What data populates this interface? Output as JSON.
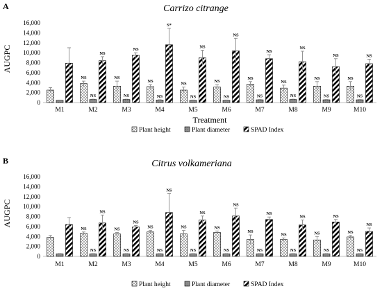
{
  "chart_data": [
    {
      "type": "bar",
      "panel": "A",
      "title": "Carrizo citrange",
      "xlabel": "Treatment",
      "ylabel": "AUGPC",
      "ylim": [
        0,
        16000
      ],
      "yticks": [
        "0",
        "2,000",
        "4,000",
        "6,000",
        "8,000",
        "10,000",
        "12,000",
        "14,000",
        "16,000"
      ],
      "categories": [
        "M1",
        "M2",
        "M3",
        "M4",
        "M5",
        "M6",
        "M7",
        "M8",
        "M9",
        "M10"
      ],
      "legend_position": "bottom",
      "series": [
        {
          "name": "Plant height",
          "pattern": "dots",
          "values": [
            2500,
            3800,
            3300,
            3200,
            2500,
            3100,
            3700,
            2900,
            3300,
            3300
          ],
          "errors": [
            500,
            500,
            1000,
            400,
            600,
            500,
            500,
            600,
            900,
            900
          ],
          "labels": [
            "",
            "NS",
            "NS",
            "NS",
            "NS",
            "NS",
            "NS",
            "NS",
            "NS",
            "NS"
          ]
        },
        {
          "name": "Plant diameter",
          "pattern": "grey",
          "values": [
            450,
            600,
            600,
            500,
            450,
            450,
            550,
            600,
            550,
            550
          ],
          "errors": [
            50,
            80,
            80,
            70,
            60,
            60,
            70,
            80,
            70,
            70
          ],
          "labels": [
            "",
            "NS",
            "NS",
            "NS",
            "NS",
            "NS",
            "NS",
            "NS",
            "NS",
            "NS"
          ]
        },
        {
          "name": "SPAD Index",
          "pattern": "stripes",
          "values": [
            7900,
            8400,
            9500,
            11600,
            9000,
            10400,
            8800,
            8200,
            7200,
            7800
          ],
          "errors": [
            3100,
            800,
            500,
            3300,
            1500,
            2500,
            800,
            2100,
            1600,
            900
          ],
          "labels": [
            "",
            "NS",
            "NS",
            "S*",
            "NS",
            "NS",
            "NS",
            "NS",
            "NS",
            "NS"
          ]
        }
      ]
    },
    {
      "type": "bar",
      "panel": "B",
      "title": "Citrus volkameriana",
      "xlabel": "Treatment",
      "ylabel": "AUGPC",
      "ylim": [
        0,
        16000
      ],
      "yticks": [
        "0",
        "2,000",
        "4,000",
        "6,000",
        "8,000",
        "10,000",
        "12,000",
        "14,000",
        "16,000"
      ],
      "categories": [
        "M1",
        "M2",
        "M3",
        "M4",
        "M5",
        "M6",
        "M7",
        "M8",
        "M9",
        "M10"
      ],
      "legend_position": "bottom",
      "series": [
        {
          "name": "Plant height",
          "pattern": "dots",
          "values": [
            3800,
            4600,
            4500,
            4900,
            4500,
            4800,
            3400,
            3400,
            3300,
            3900
          ],
          "errors": [
            400,
            300,
            300,
            300,
            700,
            300,
            900,
            300,
            700,
            300
          ],
          "labels": [
            "",
            "NS",
            "NS",
            "NS",
            "NS",
            "NS",
            "NS",
            "NS",
            "NS",
            "NS"
          ]
        },
        {
          "name": "Plant diameter",
          "pattern": "grey",
          "values": [
            500,
            500,
            500,
            500,
            500,
            500,
            500,
            500,
            500,
            500
          ],
          "errors": [
            60,
            60,
            60,
            60,
            60,
            60,
            60,
            60,
            60,
            60
          ],
          "labels": [
            "",
            "NS",
            "NS",
            "NS",
            "NS",
            "NS",
            "NS",
            "NS",
            "NS",
            "NS"
          ]
        },
        {
          "name": "SPAD Index",
          "pattern": "stripes",
          "values": [
            6400,
            6700,
            5900,
            8800,
            7300,
            8100,
            7400,
            6300,
            6900,
            5000
          ],
          "errors": [
            1400,
            1600,
            300,
            3800,
            800,
            1600,
            500,
            1000,
            500,
            700
          ],
          "labels": [
            "",
            "NS",
            "NS",
            "NS",
            "NS",
            "NS",
            "NS",
            "NS",
            "NS",
            "NS"
          ]
        }
      ]
    }
  ]
}
